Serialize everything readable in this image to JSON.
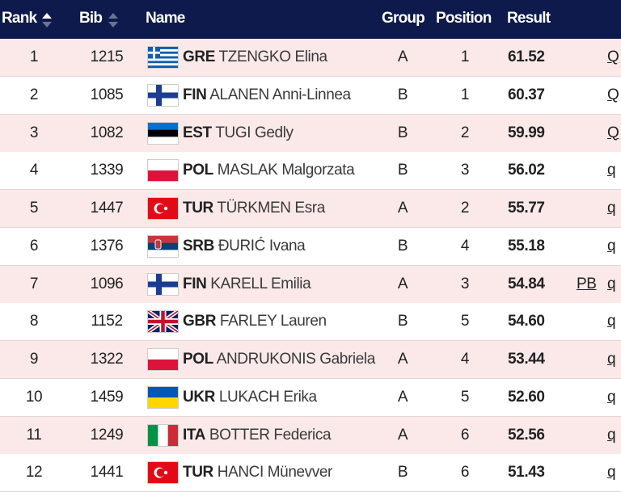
{
  "header": {
    "columns": [
      "Rank",
      "Bib",
      "Name",
      "Group",
      "Position",
      "Result"
    ]
  },
  "table": {
    "rows": [
      {
        "rank": "1",
        "bib": "1215",
        "country": "GRE",
        "name": "TZENGKO Elina",
        "group": "A",
        "position": "1",
        "result": "61.52",
        "qual": "Q"
      },
      {
        "rank": "2",
        "bib": "1085",
        "country": "FIN",
        "name": "ALANEN Anni-Linnea",
        "group": "B",
        "position": "1",
        "result": "60.37",
        "qual": "Q"
      },
      {
        "rank": "3",
        "bib": "1082",
        "country": "EST",
        "name": "TUGI Gedly",
        "group": "B",
        "position": "2",
        "result": "59.99",
        "qual": "Q"
      },
      {
        "rank": "4",
        "bib": "1339",
        "country": "POL",
        "name": "MASLAK Malgorzata",
        "group": "B",
        "position": "3",
        "result": "56.02",
        "qual": "q"
      },
      {
        "rank": "5",
        "bib": "1447",
        "country": "TUR",
        "name": "TÜRKMEN Esra",
        "group": "A",
        "position": "2",
        "result": "55.77",
        "qual": "q"
      },
      {
        "rank": "6",
        "bib": "1376",
        "country": "SRB",
        "name": "ĐURIĆ Ivana",
        "group": "B",
        "position": "4",
        "result": "55.18",
        "qual": "q"
      },
      {
        "rank": "7",
        "bib": "1096",
        "country": "FIN",
        "name": "KARELL Emilia",
        "group": "A",
        "position": "3",
        "result": "54.84",
        "note": "PB",
        "qual": "q"
      },
      {
        "rank": "8",
        "bib": "1152",
        "country": "GBR",
        "name": "FARLEY Lauren",
        "group": "B",
        "position": "5",
        "result": "54.60",
        "qual": "q"
      },
      {
        "rank": "9",
        "bib": "1322",
        "country": "POL",
        "name": "ANDRUKONIS Gabriela",
        "group": "A",
        "position": "4",
        "result": "53.44",
        "qual": "q"
      },
      {
        "rank": "10",
        "bib": "1459",
        "country": "UKR",
        "name": "LUKACH Erika",
        "group": "A",
        "position": "5",
        "result": "52.60",
        "qual": "q"
      },
      {
        "rank": "11",
        "bib": "1249",
        "country": "ITA",
        "name": "BOTTER Federica",
        "group": "A",
        "position": "6",
        "result": "52.56",
        "qual": "q"
      },
      {
        "rank": "12",
        "bib": "1441",
        "country": "TUR",
        "name": "HANCI Münevver",
        "group": "B",
        "position": "6",
        "result": "51.43",
        "qual": "q"
      }
    ]
  }
}
